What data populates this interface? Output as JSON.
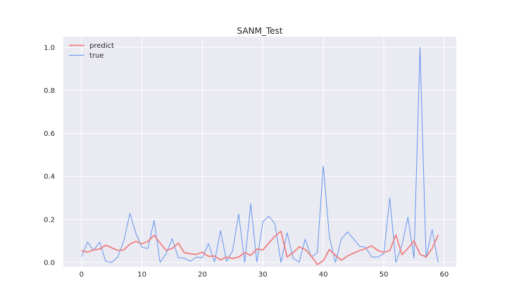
{
  "chart_data": {
    "type": "line",
    "title": "SANM_Test",
    "xlabel": "",
    "ylabel": "",
    "xlim": [
      -3,
      62
    ],
    "ylim": [
      -0.02,
      1.05
    ],
    "xticks": [
      0,
      10,
      20,
      30,
      40,
      50,
      60
    ],
    "yticks": [
      0.0,
      0.2,
      0.4,
      0.6,
      0.8,
      1.0
    ],
    "xtick_labels": [
      "0",
      "10",
      "20",
      "30",
      "40",
      "50",
      "60"
    ],
    "ytick_labels": [
      "0.0",
      "0.2",
      "0.4",
      "0.6",
      "0.8",
      "1.0"
    ],
    "grid": true,
    "legend_position": "upper-left",
    "background": "#eaeaf2",
    "x": [
      0,
      1,
      2,
      3,
      4,
      5,
      6,
      7,
      8,
      9,
      10,
      11,
      12,
      13,
      14,
      15,
      16,
      17,
      18,
      19,
      20,
      21,
      22,
      23,
      24,
      25,
      26,
      27,
      28,
      29,
      30,
      31,
      32,
      33,
      34,
      35,
      36,
      37,
      38,
      39,
      40,
      41,
      42,
      43,
      44,
      45,
      46,
      47,
      48,
      49,
      50,
      51,
      52,
      53,
      54,
      55,
      56,
      57,
      58,
      59
    ],
    "series": [
      {
        "name": "predict",
        "color": "#f08080",
        "values": [
          0.055,
          0.048,
          0.058,
          0.062,
          0.08,
          0.068,
          0.056,
          0.058,
          0.085,
          0.098,
          0.087,
          0.098,
          0.126,
          0.09,
          0.056,
          0.065,
          0.09,
          0.045,
          0.04,
          0.037,
          0.048,
          0.028,
          0.03,
          0.012,
          0.025,
          0.018,
          0.025,
          0.045,
          0.033,
          0.062,
          0.058,
          0.09,
          0.122,
          0.145,
          0.025,
          0.045,
          0.072,
          0.06,
          0.03,
          -0.01,
          0.008,
          0.06,
          0.033,
          0.01,
          0.03,
          0.043,
          0.055,
          0.064,
          0.077,
          0.056,
          0.046,
          0.055,
          0.128,
          0.036,
          0.065,
          0.1,
          0.038,
          0.025,
          0.065,
          0.128
        ]
      },
      {
        "name": "true",
        "color": "#6495ed",
        "values": [
          0.025,
          0.095,
          0.055,
          0.095,
          0.005,
          0.0,
          0.025,
          0.1,
          0.228,
          0.135,
          0.07,
          0.065,
          0.195,
          0.0,
          0.04,
          0.11,
          0.022,
          0.02,
          0.005,
          0.025,
          0.022,
          0.088,
          0.002,
          0.148,
          0.005,
          0.055,
          0.225,
          0.0,
          0.272,
          0.002,
          0.19,
          0.215,
          0.18,
          0.0,
          0.138,
          0.02,
          0.0,
          0.108,
          0.025,
          0.045,
          0.448,
          0.12,
          0.0,
          0.11,
          0.142,
          0.11,
          0.075,
          0.07,
          0.025,
          0.025,
          0.04,
          0.3,
          0.0,
          0.08,
          0.21,
          0.02,
          1.0,
          0.02,
          0.152,
          0.0
        ]
      }
    ]
  }
}
